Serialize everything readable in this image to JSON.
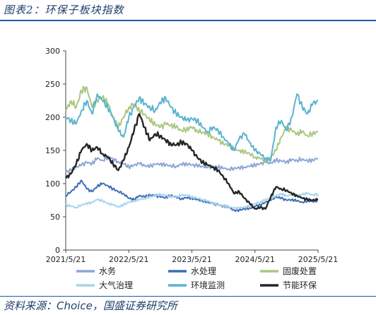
{
  "figure_title": "图表2：环保子板块指数",
  "source_prefix": "资料来源：",
  "source_name": "Choice",
  "source_suffix": "，国盛证券研究所",
  "chart_data": {
    "type": "line",
    "ylim": [
      0,
      300
    ],
    "yticks": [
      0,
      50,
      100,
      150,
      200,
      250,
      300
    ],
    "x_start": "2021/5/21",
    "x_end": "2025/5/21",
    "xtick_labels": [
      "2021/5/21",
      "2022/5/21",
      "2023/5/21",
      "2024/5/21",
      "2025/5/21"
    ],
    "x_points_per_series": 49,
    "grid": false,
    "legend_position": "bottom",
    "series": [
      {
        "name": "水务",
        "color": "#8aa7d6",
        "values": [
          118,
          120,
          125,
          128,
          132,
          130,
          138,
          135,
          140,
          137,
          133,
          130,
          125,
          128,
          130,
          127,
          126,
          129,
          130,
          128,
          127,
          126,
          129,
          130,
          128,
          127,
          126,
          124,
          126,
          125,
          123,
          122,
          123,
          124,
          125,
          126,
          128,
          130,
          132,
          131,
          135,
          134,
          133,
          136,
          135,
          137,
          134,
          136,
          138
        ]
      },
      {
        "name": "水处理",
        "color": "#3d6db5",
        "values": [
          82,
          88,
          95,
          105,
          92,
          88,
          96,
          100,
          97,
          92,
          88,
          85,
          78,
          76,
          82,
          80,
          83,
          82,
          80,
          79,
          82,
          80,
          77,
          79,
          78,
          76,
          74,
          72,
          70,
          68,
          66,
          64,
          60,
          60,
          62,
          63,
          66,
          68,
          72,
          75,
          80,
          78,
          75,
          76,
          74,
          72,
          74,
          73,
          75
        ]
      },
      {
        "name": "固废处置",
        "color": "#a9c782",
        "values": [
          210,
          225,
          215,
          240,
          245,
          215,
          225,
          230,
          220,
          200,
          185,
          200,
          215,
          220,
          210,
          205,
          195,
          190,
          185,
          190,
          188,
          185,
          180,
          182,
          185,
          180,
          177,
          175,
          170,
          165,
          160,
          158,
          152,
          150,
          148,
          145,
          140,
          138,
          135,
          140,
          150,
          170,
          185,
          180,
          175,
          178,
          172,
          176,
          178
        ]
      },
      {
        "name": "大气治理",
        "color": "#a8d4ec",
        "values": [
          68,
          66,
          64,
          68,
          70,
          72,
          76,
          74,
          70,
          68,
          65,
          68,
          72,
          74,
          76,
          78,
          80,
          82,
          84,
          82,
          80,
          80,
          82,
          83,
          80,
          78,
          76,
          74,
          70,
          68,
          66,
          65,
          63,
          63,
          65,
          66,
          70,
          72,
          76,
          78,
          82,
          84,
          82,
          83,
          82,
          84,
          85,
          83,
          84
        ]
      },
      {
        "name": "环境监测",
        "color": "#5bb3cf",
        "values": [
          200,
          195,
          190,
          210,
          225,
          205,
          235,
          225,
          215,
          200,
          180,
          170,
          200,
          215,
          230,
          220,
          215,
          210,
          222,
          230,
          215,
          205,
          200,
          195,
          198,
          195,
          185,
          178,
          185,
          180,
          170,
          160,
          150,
          168,
          175,
          162,
          150,
          145,
          138,
          135,
          185,
          195,
          180,
          200,
          235,
          215,
          205,
          220,
          225
        ]
      },
      {
        "name": "节能环保",
        "color": "#262626",
        "values": [
          108,
          115,
          130,
          150,
          160,
          150,
          155,
          145,
          140,
          130,
          120,
          135,
          155,
          180,
          205,
          185,
          165,
          175,
          172,
          165,
          160,
          158,
          162,
          160,
          150,
          140,
          132,
          128,
          125,
          120,
          110,
          100,
          85,
          88,
          78,
          70,
          62,
          64,
          62,
          80,
          95,
          92,
          90,
          85,
          82,
          78,
          76,
          75,
          76
        ]
      }
    ]
  }
}
